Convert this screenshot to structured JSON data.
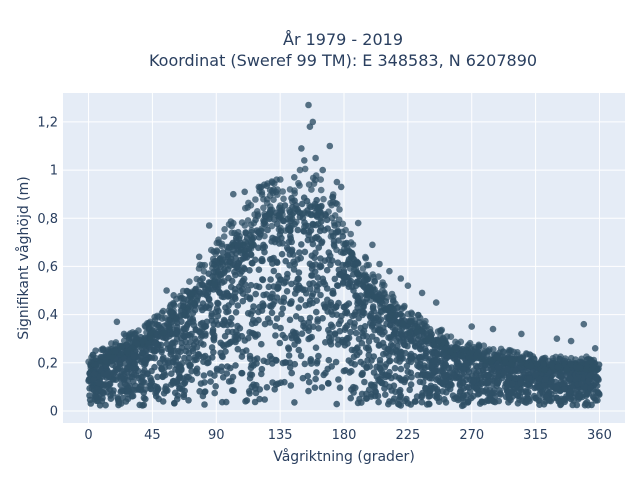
{
  "chart_data": {
    "type": "scatter",
    "title_line1": "År 1979 - 2019",
    "title_line2": "Koordinat (Sweref 99 TM): E 348583, N 6207890",
    "xlabel": "Vågriktning (grader)",
    "ylabel": "Signifikant våghöjd (m)",
    "xlim": [
      -18,
      378
    ],
    "ylim": [
      -0.05,
      1.32
    ],
    "xticks": [
      0,
      45,
      90,
      135,
      180,
      225,
      270,
      315,
      360
    ],
    "xtick_labels": [
      "0",
      "45",
      "90",
      "135",
      "180",
      "225",
      "270",
      "315",
      "360"
    ],
    "yticks": [
      0,
      0.2,
      0.4,
      0.6,
      0.8,
      1.0,
      1.2
    ],
    "ytick_labels": [
      "0",
      "0,2",
      "0,4",
      "0,6",
      "0,8",
      "1",
      "1,2"
    ],
    "grid": true,
    "marker_color": "#2f5066",
    "envelope": {
      "x": [
        0,
        20,
        40,
        60,
        80,
        100,
        120,
        140,
        155,
        165,
        175,
        185,
        200,
        220,
        240,
        260,
        280,
        300,
        320,
        340,
        360
      ],
      "upper": [
        0.2,
        0.26,
        0.32,
        0.4,
        0.55,
        0.7,
        0.82,
        0.88,
        0.9,
        0.86,
        0.78,
        0.66,
        0.52,
        0.4,
        0.33,
        0.26,
        0.24,
        0.22,
        0.2,
        0.2,
        0.2
      ]
    },
    "outliers": [
      {
        "x": 155,
        "y": 1.27
      },
      {
        "x": 158,
        "y": 1.2
      },
      {
        "x": 156,
        "y": 1.18
      },
      {
        "x": 150,
        "y": 1.09
      },
      {
        "x": 170,
        "y": 1.1
      },
      {
        "x": 160,
        "y": 1.05
      },
      {
        "x": 152,
        "y": 1.04
      },
      {
        "x": 165,
        "y": 1.0
      },
      {
        "x": 145,
        "y": 0.97
      },
      {
        "x": 175,
        "y": 0.95
      },
      {
        "x": 120,
        "y": 0.93
      },
      {
        "x": 110,
        "y": 0.91
      },
      {
        "x": 102,
        "y": 0.9
      },
      {
        "x": 178,
        "y": 0.93
      },
      {
        "x": 190,
        "y": 0.78
      },
      {
        "x": 200,
        "y": 0.69
      },
      {
        "x": 85,
        "y": 0.77
      },
      {
        "x": 78,
        "y": 0.64
      },
      {
        "x": 205,
        "y": 0.61
      },
      {
        "x": 220,
        "y": 0.55
      },
      {
        "x": 235,
        "y": 0.49
      },
      {
        "x": 245,
        "y": 0.45
      },
      {
        "x": 55,
        "y": 0.5
      },
      {
        "x": 60,
        "y": 0.48
      },
      {
        "x": 270,
        "y": 0.35
      },
      {
        "x": 285,
        "y": 0.34
      },
      {
        "x": 305,
        "y": 0.32
      },
      {
        "x": 330,
        "y": 0.3
      },
      {
        "x": 349,
        "y": 0.36
      },
      {
        "x": 20,
        "y": 0.37
      },
      {
        "x": 25,
        "y": 0.32
      },
      {
        "x": 5,
        "y": 0.25
      },
      {
        "x": 340,
        "y": 0.29
      },
      {
        "x": 357,
        "y": 0.26
      },
      {
        "x": 225,
        "y": 0.52
      },
      {
        "x": 212,
        "y": 0.58
      }
    ]
  }
}
